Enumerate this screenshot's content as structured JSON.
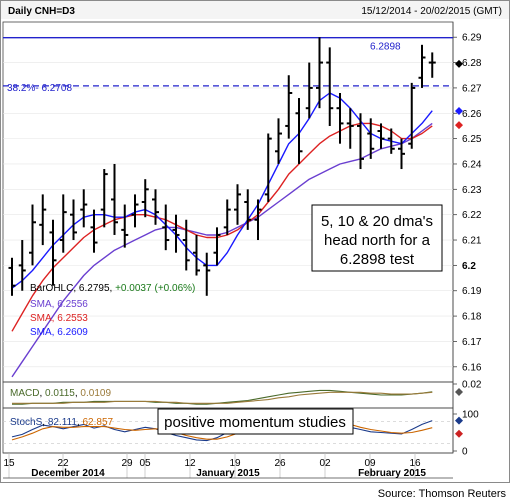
{
  "header": {
    "title": "Daily CNH=D3",
    "date_range": "15/12/2014 - 20/02/2015 (GMT)"
  },
  "source": "Source: Thomson Reuters",
  "colors": {
    "frame": "#8a8a8a",
    "bars": "#000000",
    "sma5": "#3333cc",
    "sma10": "#dd2222",
    "sma20": "#1a1aff",
    "sma5_panel": "#6a3fd0",
    "fib_line": "#2222cc",
    "high_line": "#2222cc",
    "macd": "#4a6a2a",
    "macd_signal": "#9a7a3a",
    "stoch_k": "#1a3a8a",
    "stoch_d": "#cc6600"
  },
  "annotations": {
    "high_label": "6.2898",
    "fib_label": "38.2%- 6.2708",
    "note_main": [
      "5, 10 & 20 dma's",
      "head north for a",
      "6.2898 test"
    ],
    "note_momentum": "positive momentum studies"
  },
  "legend": {
    "bars": {
      "name": "BarOHLC",
      "value": "6.2795",
      "change": "+0.0037",
      "pct": "(+0.06%)"
    },
    "sma_a": {
      "name": "SMA",
      "value": "6.2556"
    },
    "sma_b": {
      "name": "SMA",
      "value": "6.2553"
    },
    "sma_c": {
      "name": "SMA",
      "value": "6.2609"
    }
  },
  "macd_legend": {
    "name": "MACD",
    "value": "0.0115",
    "signal": "0.0109"
  },
  "stoch_legend": {
    "name": "StochS",
    "k": "82.111",
    "d": "62.857"
  },
  "x_axis": {
    "day_ticks": [
      "15",
      "22",
      "29",
      "05",
      "12",
      "19",
      "26",
      "02",
      "09",
      "16"
    ],
    "months": [
      "December 2014",
      "January 2015",
      "February 2015"
    ]
  },
  "chart_data": [
    {
      "type": "line",
      "title": "Daily CNH=D3",
      "y_ticks": [
        "6.29",
        "6.28",
        "6.27",
        "6.26",
        "6.25",
        "6.24",
        "6.23",
        "6.22",
        "6.21",
        "6.2",
        "6.19",
        "6.18",
        "6.17",
        "6.16"
      ],
      "ylim": [
        6.154,
        6.296
      ],
      "bars_ohlc": [
        {
          "open": 6.199,
          "high": 6.203,
          "low": 6.188,
          "close": 6.192
        },
        {
          "open": 6.2,
          "high": 6.21,
          "low": 6.19,
          "close": 6.198
        },
        {
          "open": 6.205,
          "high": 6.224,
          "low": 6.2,
          "close": 6.217
        },
        {
          "open": 6.216,
          "high": 6.228,
          "low": 6.208,
          "close": 6.222
        },
        {
          "open": 6.213,
          "high": 6.218,
          "low": 6.192,
          "close": 6.202
        },
        {
          "open": 6.21,
          "high": 6.228,
          "low": 6.205,
          "close": 6.221
        },
        {
          "open": 6.22,
          "high": 6.226,
          "low": 6.21,
          "close": 6.213
        },
        {
          "open": 6.222,
          "high": 6.23,
          "low": 6.215,
          "close": 6.224
        },
        {
          "open": 6.215,
          "high": 6.222,
          "low": 6.205,
          "close": 6.209
        },
        {
          "open": 6.222,
          "high": 6.238,
          "low": 6.215,
          "close": 6.236
        },
        {
          "open": 6.226,
          "high": 6.24,
          "low": 6.212,
          "close": 6.217
        },
        {
          "open": 6.214,
          "high": 6.224,
          "low": 6.207,
          "close": 6.212
        },
        {
          "open": 6.22,
          "high": 6.228,
          "low": 6.215,
          "close": 6.224
        },
        {
          "open": 6.225,
          "high": 6.234,
          "low": 6.219,
          "close": 6.23
        },
        {
          "open": 6.226,
          "high": 6.23,
          "low": 6.216,
          "close": 6.221
        },
        {
          "open": 6.215,
          "high": 6.224,
          "low": 6.206,
          "close": 6.21
        },
        {
          "open": 6.214,
          "high": 6.22,
          "low": 6.205,
          "close": 6.212
        },
        {
          "open": 6.21,
          "high": 6.218,
          "low": 6.198,
          "close": 6.202
        },
        {
          "open": 6.205,
          "high": 6.212,
          "low": 6.196,
          "close": 6.198
        },
        {
          "open": 6.2,
          "high": 6.205,
          "low": 6.188,
          "close": 6.198
        },
        {
          "open": 6.205,
          "high": 6.215,
          "low": 6.2,
          "close": 6.212
        },
        {
          "open": 6.215,
          "high": 6.226,
          "low": 6.212,
          "close": 6.222
        },
        {
          "open": 6.222,
          "high": 6.232,
          "low": 6.216,
          "close": 6.228
        },
        {
          "open": 6.225,
          "high": 6.23,
          "low": 6.214,
          "close": 6.218
        },
        {
          "open": 6.218,
          "high": 6.226,
          "low": 6.21,
          "close": 6.222
        },
        {
          "open": 6.228,
          "high": 6.252,
          "low": 6.225,
          "close": 6.25
        },
        {
          "open": 6.245,
          "high": 6.258,
          "low": 6.24,
          "close": 6.252
        },
        {
          "open": 6.255,
          "high": 6.275,
          "low": 6.25,
          "close": 6.268
        },
        {
          "open": 6.26,
          "high": 6.266,
          "low": 6.24,
          "close": 6.245
        },
        {
          "open": 6.262,
          "high": 6.28,
          "low": 6.258,
          "close": 6.27
        },
        {
          "open": 6.27,
          "high": 6.29,
          "low": 6.262,
          "close": 6.28
        },
        {
          "open": 6.28,
          "high": 6.286,
          "low": 6.255,
          "close": 6.262
        },
        {
          "open": 6.262,
          "high": 6.268,
          "low": 6.248,
          "close": 6.256
        },
        {
          "open": 6.256,
          "high": 6.262,
          "low": 6.246,
          "close": 6.255
        },
        {
          "open": 6.255,
          "high": 6.26,
          "low": 6.238,
          "close": 6.242
        },
        {
          "open": 6.252,
          "high": 6.258,
          "low": 6.242,
          "close": 6.246
        },
        {
          "open": 6.253,
          "high": 6.256,
          "low": 6.246,
          "close": 6.25
        },
        {
          "open": 6.25,
          "high": 6.254,
          "low": 6.244,
          "close": 6.246
        },
        {
          "open": 6.246,
          "high": 6.25,
          "low": 6.238,
          "close": 6.244
        },
        {
          "open": 6.248,
          "high": 6.272,
          "low": 6.246,
          "close": 6.27
        },
        {
          "open": 6.274,
          "high": 6.287,
          "low": 6.27,
          "close": 6.282
        },
        {
          "open": 6.28,
          "high": 6.284,
          "low": 6.274,
          "close": 6.28
        }
      ],
      "series": [
        {
          "name": "SMA 6.2556",
          "values": [
            6.156,
            6.162,
            6.168,
            6.174,
            6.18,
            6.186,
            6.191,
            6.196,
            6.2,
            6.203,
            6.206,
            6.208,
            6.21,
            6.212,
            6.214,
            6.215,
            6.215,
            6.214,
            6.213,
            6.212,
            6.212,
            6.213,
            6.215,
            6.217,
            6.219,
            6.222,
            6.225,
            6.228,
            6.231,
            6.234,
            6.236,
            6.238,
            6.24,
            6.241,
            6.242,
            6.244,
            6.246,
            6.247,
            6.248,
            6.25,
            6.253,
            6.256
          ]
        },
        {
          "name": "SMA 6.2553",
          "values": [
            6.174,
            6.181,
            6.188,
            6.194,
            6.199,
            6.203,
            6.207,
            6.211,
            6.214,
            6.216,
            6.218,
            6.219,
            6.22,
            6.22,
            6.219,
            6.218,
            6.216,
            6.214,
            6.212,
            6.211,
            6.211,
            6.212,
            6.214,
            6.217,
            6.22,
            6.225,
            6.23,
            6.236,
            6.24,
            6.244,
            6.248,
            6.251,
            6.253,
            6.255,
            6.256,
            6.256,
            6.255,
            6.253,
            6.25,
            6.25,
            6.252,
            6.255
          ]
        },
        {
          "name": "SMA 6.2609",
          "values": [
            6.191,
            6.194,
            6.198,
            6.203,
            6.208,
            6.212,
            6.216,
            6.219,
            6.22,
            6.22,
            6.219,
            6.219,
            6.221,
            6.222,
            6.22,
            6.216,
            6.212,
            6.207,
            6.203,
            6.2,
            6.2,
            6.205,
            6.212,
            6.218,
            6.224,
            6.232,
            6.24,
            6.248,
            6.252,
            6.258,
            6.265,
            6.268,
            6.266,
            6.262,
            6.257,
            6.252,
            6.25,
            6.249,
            6.248,
            6.252,
            6.256,
            6.261
          ]
        }
      ],
      "reference_lines": [
        {
          "label": "6.2898",
          "value": 6.2898
        },
        {
          "label": "38.2%- 6.2708",
          "value": 6.2708
        }
      ]
    },
    {
      "type": "line",
      "title": "MACD",
      "y_ticks": [
        "0.02"
      ],
      "series": [
        {
          "name": "MACD 0.0115",
          "values": [
            -0.002,
            -0.002,
            -0.001,
            -0.001,
            -0.001,
            0.0,
            0.0,
            0.0,
            0.001,
            0.001,
            0.001,
            0.001,
            0.001,
            0.001,
            0.0,
            0.0,
            -0.001,
            -0.001,
            -0.002,
            -0.002,
            -0.001,
            0.0,
            0.001,
            0.002,
            0.004,
            0.006,
            0.008,
            0.01,
            0.011,
            0.012,
            0.013,
            0.013,
            0.012,
            0.011,
            0.01,
            0.009,
            0.008,
            0.008,
            0.008,
            0.009,
            0.01,
            0.0115
          ]
        },
        {
          "name": "signal 0.0109",
          "values": [
            -0.001,
            -0.001,
            -0.001,
            -0.001,
            -0.001,
            -0.001,
            0.0,
            0.0,
            0.0,
            0.0,
            0.001,
            0.001,
            0.001,
            0.001,
            0.001,
            0.0,
            0.0,
            -0.001,
            -0.001,
            -0.001,
            -0.001,
            -0.001,
            0.0,
            0.001,
            0.002,
            0.003,
            0.005,
            0.006,
            0.008,
            0.009,
            0.01,
            0.011,
            0.011,
            0.011,
            0.011,
            0.01,
            0.01,
            0.009,
            0.009,
            0.009,
            0.01,
            0.0109
          ]
        }
      ]
    },
    {
      "type": "line",
      "title": "StochS",
      "y_ticks": [
        "100",
        "0"
      ],
      "series": [
        {
          "name": "StochS 82.111",
          "values": [
            38,
            45,
            58,
            70,
            66,
            60,
            66,
            72,
            62,
            68,
            58,
            52,
            58,
            64,
            60,
            50,
            42,
            36,
            30,
            28,
            36,
            50,
            62,
            70,
            74,
            80,
            84,
            86,
            80,
            84,
            88,
            82,
            72,
            64,
            58,
            52,
            50,
            48,
            46,
            58,
            72,
            82.111
          ]
        },
        {
          "name": "62.857",
          "values": [
            30,
            38,
            48,
            60,
            66,
            64,
            64,
            66,
            66,
            66,
            62,
            58,
            56,
            58,
            60,
            58,
            50,
            42,
            36,
            32,
            32,
            38,
            48,
            60,
            68,
            74,
            78,
            82,
            82,
            84,
            86,
            84,
            80,
            72,
            64,
            58,
            54,
            50,
            48,
            50,
            56,
            62.857
          ]
        }
      ]
    }
  ]
}
